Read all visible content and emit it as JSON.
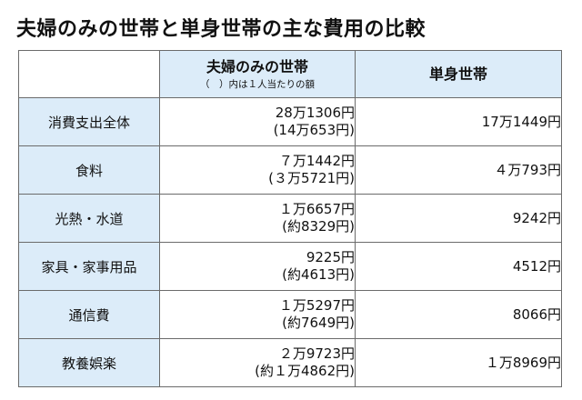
{
  "title": "夫婦のみの世帯と単身世帯の主な費用の比較",
  "header": {
    "couple_label": "夫婦のみの世帯",
    "couple_note": "（　）内は１人当たりの額",
    "single_label": "単身世帯"
  },
  "rows": [
    {
      "label": "消費支出全体",
      "couple": "28万1306円",
      "couple_per": "(14万653円)",
      "single": "17万1449円"
    },
    {
      "label": "食料",
      "couple": "７万1442円",
      "couple_per": "(３万5721円)",
      "single": "４万793円"
    },
    {
      "label": "光熱・水道",
      "couple": "１万6657円",
      "couple_per": "(約8329円)",
      "single": "9242円"
    },
    {
      "label": "家具・家事用品",
      "couple": "9225円",
      "couple_per": "(約4613円)",
      "single": "4512円"
    },
    {
      "label": "通信費",
      "couple": "１万5297円",
      "couple_per": "(約7649円)",
      "single": "8066円"
    },
    {
      "label": "教養娯楽",
      "couple": "２万9723円",
      "couple_per": "(約１万4862円)",
      "single": "１万8969円"
    }
  ]
}
